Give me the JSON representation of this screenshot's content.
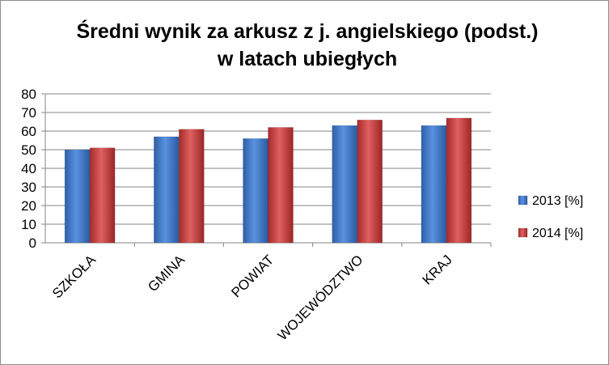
{
  "chart_data": {
    "type": "bar",
    "title": "Średni wynik za arkusz z j. angielskiego (podst.) w latach ubiegłych",
    "title_lines": [
      "Średni wynik za arkusz z j. angielskiego (podst.)",
      "w latach ubiegłych"
    ],
    "categories": [
      "SZKOŁA",
      "GMINA",
      "POWIAT",
      "WOJEWÓDZTWO",
      "KRAJ"
    ],
    "series": [
      {
        "name": "2013 [%]",
        "values": [
          50,
          57,
          56,
          63,
          63
        ],
        "color": "#3a74c8"
      },
      {
        "name": "2014 [%]",
        "values": [
          51,
          61,
          62,
          66,
          67
        ],
        "color": "#c83a3a"
      }
    ],
    "ylim": [
      0,
      80
    ],
    "yticks": [
      "0",
      "10",
      "20",
      "30",
      "40",
      "50",
      "60",
      "70",
      "80"
    ],
    "grid": true,
    "legend_position": "right",
    "xlabel": "",
    "ylabel": ""
  }
}
